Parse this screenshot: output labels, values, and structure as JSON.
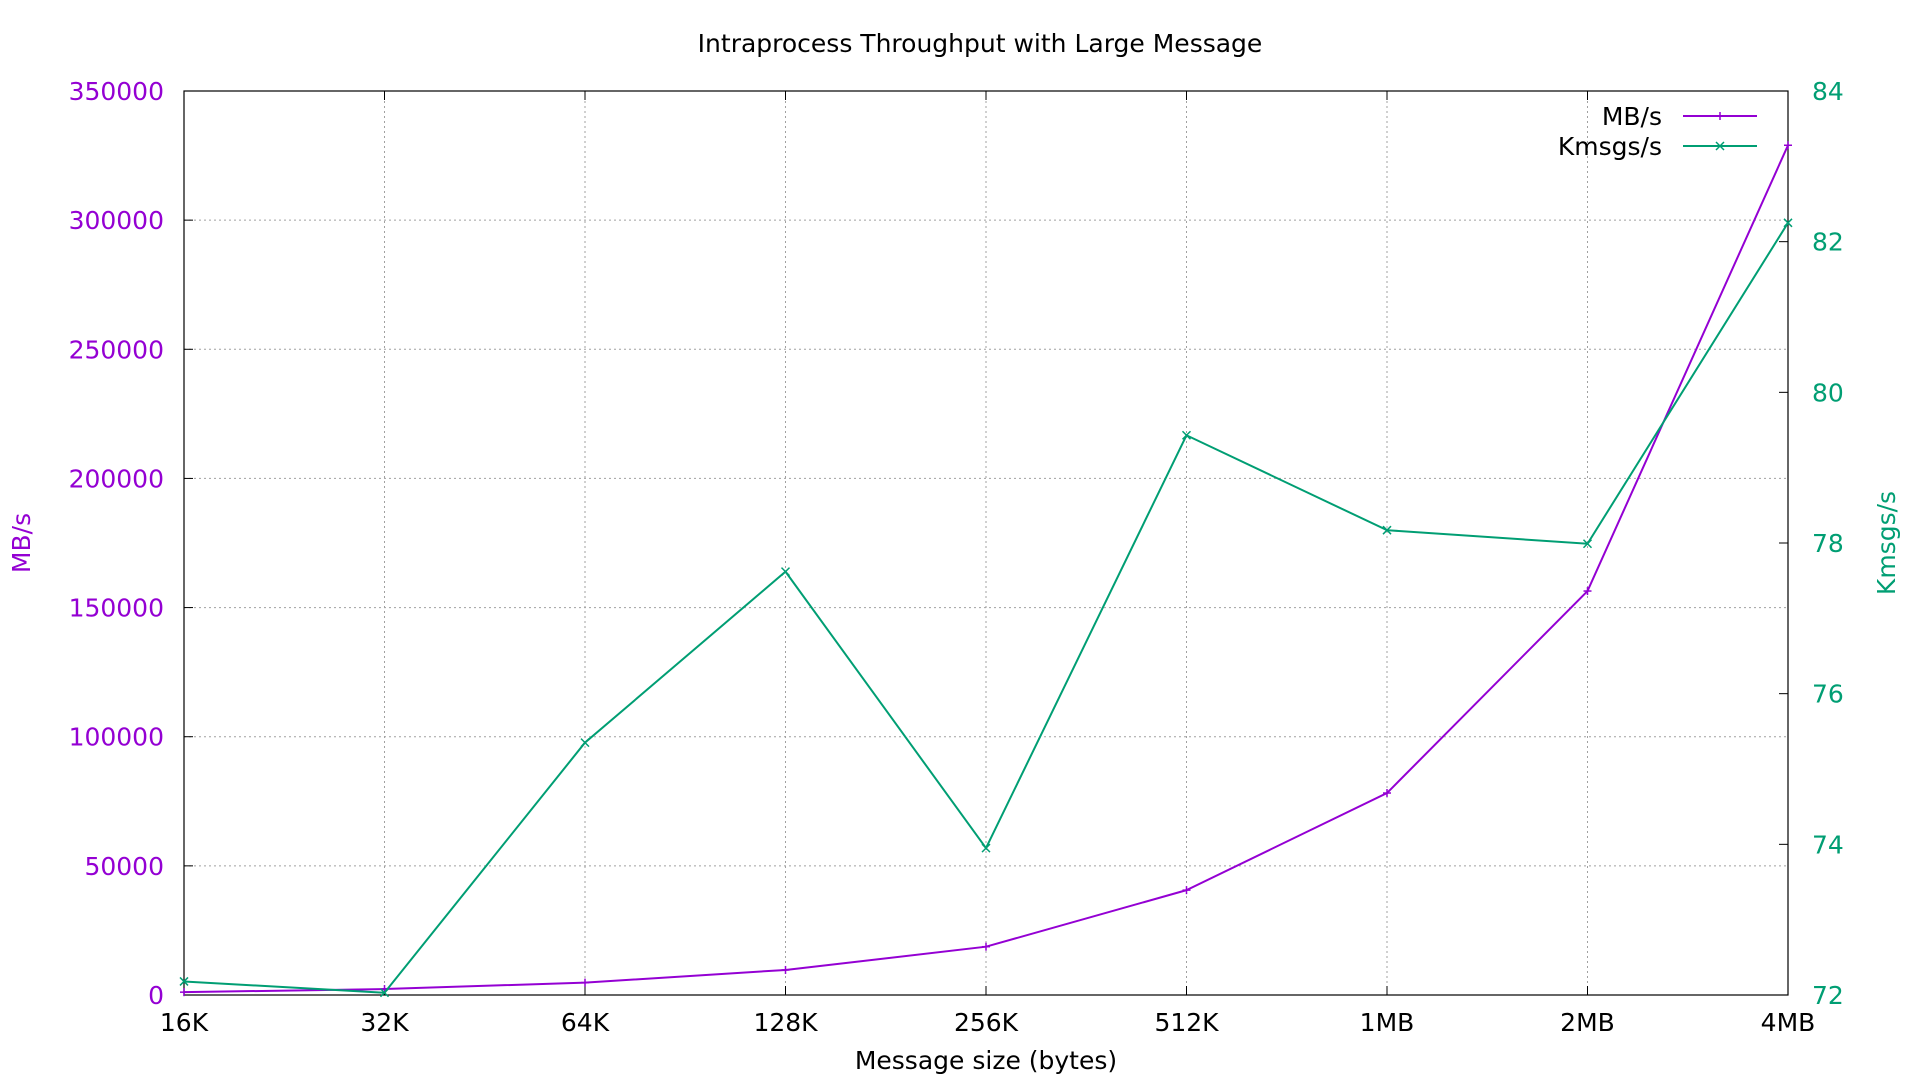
{
  "chart_data": {
    "type": "line",
    "title": "Intraprocess Throughput with Large Message",
    "xlabel": "Message size (bytes)",
    "ylabel": "MB/s",
    "y2label": "Kmsgs/s",
    "categories": [
      "16K",
      "32K",
      "64K",
      "128K",
      "256K",
      "512K",
      "1MB",
      "2MB",
      "4MB"
    ],
    "ylim": [
      0,
      350000
    ],
    "y2lim": [
      72,
      84
    ],
    "yticks": [
      "0",
      "50000",
      "100000",
      "150000",
      "200000",
      "250000",
      "300000",
      "350000"
    ],
    "y2ticks": [
      "72",
      "74",
      "76",
      "78",
      "80",
      "82",
      "84"
    ],
    "grid": true,
    "legend_position": "top-right",
    "series": [
      {
        "name": "MB/s",
        "axis": "left",
        "color": "#9400d3",
        "marker": "plus",
        "values": [
          1100,
          2300,
          4800,
          9700,
          18700,
          40600,
          78200,
          156400,
          329000
        ]
      },
      {
        "name": "Kmsgs/s",
        "axis": "right",
        "color": "#009e73",
        "marker": "cross",
        "values": [
          72.18,
          72.03,
          75.35,
          77.62,
          73.95,
          79.43,
          78.17,
          77.99,
          82.25
        ]
      }
    ]
  }
}
